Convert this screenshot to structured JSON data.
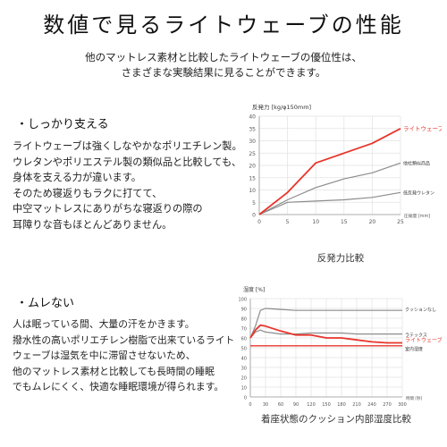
{
  "page": {
    "title": "数値で見るライトウェーブの性能",
    "intro": [
      "他のマットレス素材と比較したライトウェーブの優位性は、",
      "さまざまな実験結果に見ることができます。"
    ]
  },
  "section1": {
    "heading": "・しっかり支える",
    "body": "ライトウェーブは強くしなやかなポリエチレン製。\nウレタンやポリエステル製の類似品と比較しても、\n身体を支える力が違います。\nそのため寝返りもラクに打てて、\n中空マットレスにありがちな寝返りの際の\n耳障りな音もほとんどありません。"
  },
  "section2": {
    "heading": "・ムレない",
    "body": "人は眠っている間、大量の汗をかきます。\n撥水性の高いポリエチレン樹脂で出来ているライト\nウェーブは湿気を中に滞留させないため、\n他のマットレス素材と比較しても長時間の睡眠\nでもムレにくく、快適な睡眠環境が得られます。"
  },
  "chart_data": [
    {
      "type": "line",
      "caption": "反発力比較",
      "ylabel": "反発力 [kg/φ150mm]",
      "xunit": "圧縮量 [mm]",
      "xlim": [
        0,
        25
      ],
      "ylim": [
        0,
        40
      ],
      "xticks": [
        "0",
        "5",
        "10",
        "15",
        "20",
        "25"
      ],
      "yticks": [
        "0",
        "5",
        "10",
        "15",
        "20",
        "25",
        "30",
        "35",
        "40"
      ],
      "grid": true,
      "colors": {
        "highlight": "#e8352b",
        "muted": "#8c8c8c"
      },
      "series": [
        {
          "name": "ライトウェーブ",
          "highlight": true,
          "x": [
            0,
            5,
            10,
            15,
            20,
            25
          ],
          "y": [
            0,
            9,
            21,
            25,
            29,
            35
          ]
        },
        {
          "name": "他社類似商品",
          "highlight": false,
          "x": [
            0,
            5,
            10,
            15,
            20,
            25
          ],
          "y": [
            0,
            6,
            11,
            14.5,
            17,
            21
          ]
        },
        {
          "name": "低反発ウレタン",
          "highlight": false,
          "x": [
            0,
            5,
            10,
            15,
            20,
            25
          ],
          "y": [
            0,
            5,
            5.5,
            6,
            7,
            9
          ]
        }
      ]
    },
    {
      "type": "line",
      "caption": "着座状態のクッション内部湿度比較",
      "ylabel": "湿度 [%]",
      "xunit": "時間 [秒]",
      "xlim": [
        0,
        300
      ],
      "ylim": [
        0,
        100
      ],
      "xticks": [
        "0",
        "30",
        "60",
        "90",
        "120",
        "150",
        "180",
        "210",
        "240",
        "270",
        "300"
      ],
      "yticks": [
        "0",
        "10",
        "20",
        "30",
        "40",
        "50",
        "60",
        "70",
        "80",
        "90",
        "100"
      ],
      "grid": true,
      "colors": {
        "highlight": "#e8352b",
        "muted": "#8c8c8c",
        "room": "#e8352b"
      },
      "series": [
        {
          "name": "クッションなし",
          "highlight": false,
          "x": [
            0,
            10,
            20,
            30,
            60,
            90,
            120,
            150,
            180,
            210,
            240,
            270,
            300
          ],
          "y": [
            60,
            72,
            88,
            90,
            89,
            88,
            88,
            88,
            88,
            88,
            88,
            88,
            88
          ]
        },
        {
          "name": "ラテックス",
          "highlight": false,
          "x": [
            0,
            10,
            20,
            30,
            60,
            90,
            120,
            150,
            180,
            210,
            240,
            270,
            300
          ],
          "y": [
            60,
            66,
            68,
            66,
            64,
            64,
            65,
            65,
            65,
            64,
            64,
            64,
            64
          ]
        },
        {
          "name": "ライトウェーブ",
          "highlight": true,
          "x": [
            0,
            10,
            20,
            30,
            60,
            90,
            120,
            150,
            180,
            210,
            240,
            270,
            300
          ],
          "y": [
            60,
            68,
            73,
            72,
            67,
            63,
            63,
            60,
            60,
            58,
            56,
            55,
            55
          ]
        },
        {
          "name": "室内湿度",
          "highlight": false,
          "room": true,
          "x": [
            0,
            300
          ],
          "y": [
            52,
            52
          ]
        }
      ]
    }
  ]
}
